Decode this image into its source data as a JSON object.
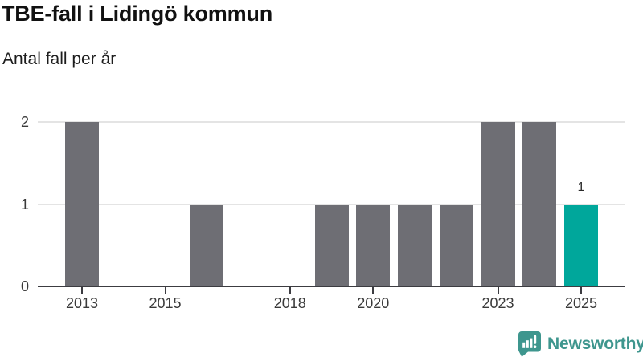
{
  "header": {
    "title": "TBE-fall i Lidingö kommun",
    "subtitle": "Antal fall per år"
  },
  "chart_data": {
    "type": "bar",
    "title": "TBE-fall i Lidingö kommun",
    "subtitle": "Antal fall per år",
    "x": [
      2013,
      2014,
      2015,
      2016,
      2017,
      2018,
      2019,
      2020,
      2021,
      2022,
      2023,
      2024,
      2025
    ],
    "values": [
      2,
      0,
      0,
      1,
      0,
      0,
      1,
      1,
      1,
      1,
      2,
      2,
      1
    ],
    "ylim": [
      0,
      2
    ],
    "y_ticks": [
      0,
      1,
      2
    ],
    "x_tick_labels": [
      "2013",
      "2015",
      "2018",
      "2020",
      "2023",
      "2025"
    ],
    "highlight_x": 2025,
    "annotations": [
      {
        "x": 2025,
        "text": "1"
      }
    ],
    "grid": "horizontal",
    "legend": "none",
    "colors": {
      "bar": "#6e6e74",
      "highlight": "#00a79b",
      "grid": "#e4e4e4",
      "axis": "#3c3c41",
      "tick_label": "#3a3a3a",
      "annotation": "#2a2a2a"
    }
  },
  "footer": {
    "brand": "Newsworthy",
    "brand_color": "#3e968e",
    "logo_icon": "bar-chart-speech-bubble-icon"
  }
}
